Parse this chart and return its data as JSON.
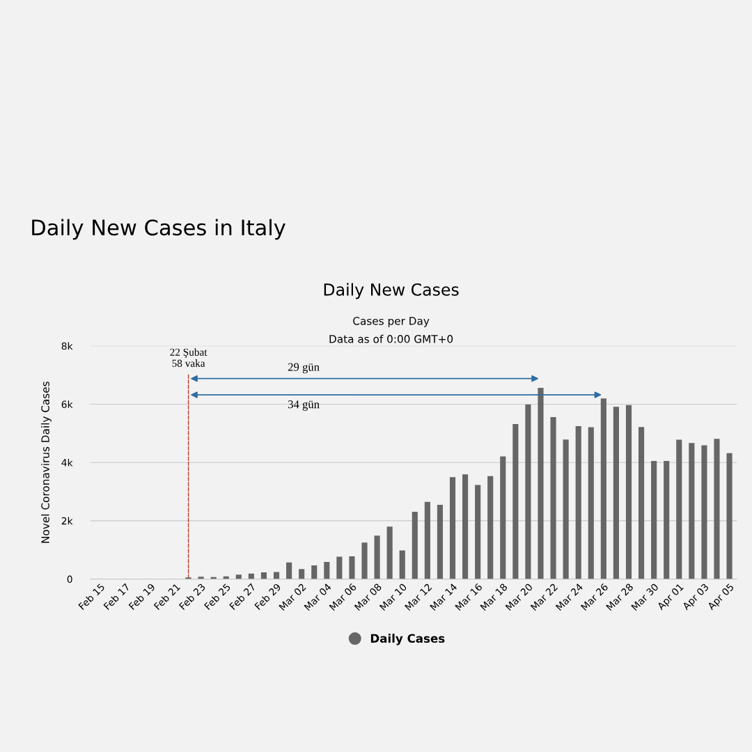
{
  "chart_data": {
    "type": "bar",
    "title": "Daily New Cases in Italy",
    "subtitle": "Daily New Cases",
    "annotations": [
      "Cases per Day",
      "Data as of 0:00 GMT+0",
      {
        "text": "22 Şubat\n58 vaka",
        "y": 58
      },
      "29 gün",
      "34 gün"
    ],
    "ylabel": "Novel Coronavirus Daily Cases",
    "categories": [
      "Feb 15",
      null,
      "Feb 17",
      null,
      "Feb 19",
      null,
      "Feb 21",
      null,
      "Feb 23",
      null,
      "Feb 25",
      null,
      "Feb 27",
      null,
      "Feb 29",
      null,
      "Mar 02",
      null,
      "Mar 04",
      null,
      "Mar 06",
      null,
      "Mar 08",
      null,
      "Mar 10",
      null,
      "Mar 12",
      null,
      "Mar 14",
      null,
      "Mar 16",
      null,
      "Mar 18",
      null,
      "Mar 20",
      null,
      "Mar 22",
      null,
      "Mar 24",
      null,
      "Mar 26",
      null,
      "Mar 28",
      null,
      "Mar 30",
      null,
      "Apr 01",
      null,
      "Apr 03",
      null,
      "Apr 05"
    ],
    "series": [
      {
        "name": "Daily Cases",
        "color": "#666666",
        "values": [
          0,
          0,
          0,
          0,
          0,
          0,
          0,
          58,
          80,
          70,
          90,
          150,
          190,
          230,
          240,
          570,
          340,
          470,
          590,
          770,
          780,
          1250,
          1490,
          1800,
          980,
          2310,
          2650,
          2550,
          3500,
          3590,
          3230,
          3530,
          4210,
          5320,
          5990,
          6560,
          5560,
          4790,
          5250,
          5210,
          6200,
          5910,
          5970,
          5220,
          4050,
          4050,
          4780,
          4670,
          4590,
          4810,
          4320
        ]
      }
    ],
    "ylim": [
      0,
      8000
    ],
    "yticks": [
      {
        "value": 0,
        "label": "0"
      },
      {
        "value": 2000,
        "label": "2k"
      },
      {
        "value": 4000,
        "label": "4k"
      },
      {
        "value": 6000,
        "label": "6k"
      },
      {
        "value": 8000,
        "label": "8k"
      }
    ],
    "grid": "y",
    "legend": "bottom"
  }
}
